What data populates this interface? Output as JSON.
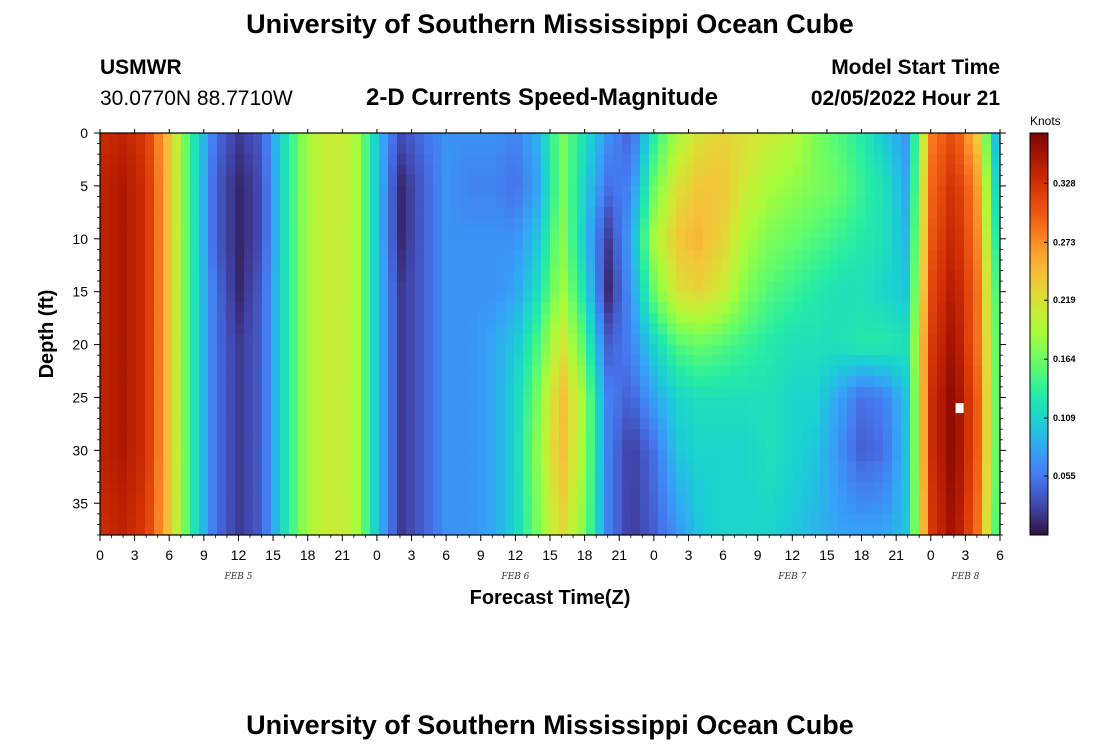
{
  "header": {
    "title": "University of Southern Mississippi Ocean Cube",
    "station": "USMWR",
    "coords": "30.0770N  88.7710W",
    "subtitle": "2-D Currents Speed-Magnitude",
    "model_label": "Model Start Time",
    "model_time": "02/05/2022 Hour 21"
  },
  "footer": {
    "title": "University of Southern Mississippi Ocean Cube"
  },
  "chart_data": {
    "type": "heatmap",
    "title": "2-D Currents Speed-Magnitude",
    "xlabel": "Forecast Time(Z)",
    "ylabel": "Depth (ft)",
    "colorbar_label": "Knots",
    "colorbar_ticks": [
      0.055,
      0.109,
      0.164,
      0.219,
      0.273,
      0.328
    ],
    "colorbar_tick_labels": [
      "0.055",
      "0.109",
      "0.164",
      "0.219",
      "0.273",
      "0.328"
    ],
    "zlim": [
      0.0,
      0.375
    ],
    "xlim": [
      0,
      78
    ],
    "ylim": [
      0,
      38
    ],
    "x_ticks": [
      0,
      3,
      6,
      9,
      12,
      15,
      18,
      21,
      24,
      27,
      30,
      33,
      36,
      39,
      42,
      45,
      48,
      51,
      54,
      57,
      60,
      63,
      66,
      69,
      72,
      75,
      78
    ],
    "x_tick_labels": [
      "0",
      "3",
      "6",
      "9",
      "12",
      "15",
      "18",
      "21",
      "0",
      "3",
      "6",
      "9",
      "12",
      "15",
      "18",
      "21",
      "0",
      "3",
      "6",
      "9",
      "12",
      "15",
      "18",
      "21",
      "0",
      "3",
      "6"
    ],
    "y_ticks": [
      0,
      5,
      10,
      15,
      20,
      25,
      30,
      35
    ],
    "y_tick_labels": [
      "0",
      "5",
      "10",
      "15",
      "20",
      "25",
      "30",
      "35"
    ],
    "date_labels": [
      {
        "text": "FEB 5",
        "x": 12
      },
      {
        "text": "FEB 6",
        "x": 36
      },
      {
        "text": "FEB 7",
        "x": 60
      },
      {
        "text": "FEB 8",
        "x": 75
      }
    ],
    "grid": {
      "x_hours": [
        0,
        2,
        4,
        6,
        8,
        10,
        12,
        14,
        16,
        18,
        20,
        22,
        24,
        26,
        28,
        30,
        32,
        34,
        36,
        38,
        40,
        42,
        44,
        46,
        48,
        50,
        52,
        54,
        56,
        58,
        60,
        62,
        64,
        66,
        68,
        70,
        72,
        74,
        76,
        78
      ],
      "depths_ft": [
        0,
        5,
        10,
        15,
        20,
        25,
        30,
        38
      ],
      "values": [
        [
          0.33,
          0.34,
          0.32,
          0.24,
          0.13,
          0.05,
          0.02,
          0.04,
          0.12,
          0.19,
          0.21,
          0.2,
          0.1,
          0.03,
          0.05,
          0.07,
          0.07,
          0.07,
          0.06,
          0.09,
          0.17,
          0.12,
          0.07,
          0.04,
          0.13,
          0.19,
          0.22,
          0.23,
          0.22,
          0.21,
          0.2,
          0.17,
          0.15,
          0.13,
          0.1,
          0.07,
          0.28,
          0.31,
          0.24,
          0.06
        ],
        [
          0.34,
          0.35,
          0.33,
          0.24,
          0.13,
          0.04,
          0.01,
          0.03,
          0.12,
          0.19,
          0.21,
          0.2,
          0.1,
          0.01,
          0.04,
          0.07,
          0.06,
          0.06,
          0.05,
          0.08,
          0.17,
          0.11,
          0.05,
          0.06,
          0.16,
          0.22,
          0.24,
          0.24,
          0.21,
          0.19,
          0.18,
          0.17,
          0.16,
          0.14,
          0.12,
          0.08,
          0.29,
          0.33,
          0.27,
          0.08
        ],
        [
          0.34,
          0.35,
          0.33,
          0.24,
          0.13,
          0.04,
          0.01,
          0.03,
          0.12,
          0.19,
          0.21,
          0.2,
          0.1,
          0.01,
          0.04,
          0.07,
          0.07,
          0.07,
          0.07,
          0.1,
          0.18,
          0.1,
          0.02,
          0.08,
          0.19,
          0.24,
          0.25,
          0.23,
          0.19,
          0.17,
          0.16,
          0.15,
          0.14,
          0.13,
          0.12,
          0.09,
          0.3,
          0.34,
          0.28,
          0.1
        ],
        [
          0.34,
          0.35,
          0.33,
          0.24,
          0.13,
          0.05,
          0.01,
          0.04,
          0.12,
          0.19,
          0.21,
          0.2,
          0.1,
          0.02,
          0.04,
          0.07,
          0.07,
          0.07,
          0.08,
          0.12,
          0.19,
          0.12,
          0.01,
          0.07,
          0.16,
          0.22,
          0.23,
          0.21,
          0.17,
          0.15,
          0.14,
          0.13,
          0.12,
          0.12,
          0.11,
          0.1,
          0.31,
          0.35,
          0.29,
          0.12
        ],
        [
          0.34,
          0.35,
          0.33,
          0.24,
          0.13,
          0.05,
          0.02,
          0.04,
          0.12,
          0.19,
          0.21,
          0.2,
          0.1,
          0.02,
          0.04,
          0.07,
          0.07,
          0.08,
          0.1,
          0.15,
          0.22,
          0.15,
          0.04,
          0.06,
          0.11,
          0.15,
          0.16,
          0.15,
          0.14,
          0.13,
          0.12,
          0.12,
          0.12,
          0.13,
          0.13,
          0.12,
          0.32,
          0.36,
          0.29,
          0.13
        ],
        [
          0.34,
          0.35,
          0.33,
          0.24,
          0.13,
          0.05,
          0.02,
          0.04,
          0.12,
          0.19,
          0.21,
          0.2,
          0.1,
          0.02,
          0.04,
          0.07,
          0.07,
          0.08,
          0.11,
          0.17,
          0.25,
          0.18,
          0.06,
          0.04,
          0.08,
          0.11,
          0.12,
          0.12,
          0.12,
          0.12,
          0.11,
          0.11,
          0.08,
          0.05,
          0.06,
          0.1,
          0.33,
          0.37,
          0.3,
          0.13
        ],
        [
          0.34,
          0.35,
          0.33,
          0.24,
          0.13,
          0.05,
          0.02,
          0.04,
          0.12,
          0.19,
          0.21,
          0.2,
          0.1,
          0.02,
          0.04,
          0.07,
          0.07,
          0.08,
          0.11,
          0.18,
          0.25,
          0.18,
          0.06,
          0.02,
          0.05,
          0.1,
          0.11,
          0.11,
          0.11,
          0.12,
          0.11,
          0.1,
          0.07,
          0.04,
          0.05,
          0.1,
          0.33,
          0.37,
          0.3,
          0.13
        ],
        [
          0.33,
          0.34,
          0.32,
          0.24,
          0.13,
          0.05,
          0.02,
          0.04,
          0.12,
          0.19,
          0.21,
          0.2,
          0.1,
          0.02,
          0.04,
          0.07,
          0.07,
          0.08,
          0.11,
          0.17,
          0.23,
          0.17,
          0.06,
          0.02,
          0.04,
          0.07,
          0.1,
          0.11,
          0.11,
          0.11,
          0.1,
          0.09,
          0.08,
          0.08,
          0.08,
          0.1,
          0.32,
          0.36,
          0.29,
          0.12
        ]
      ]
    },
    "annotation_marker": {
      "x": 74.5,
      "depth": 26
    }
  }
}
